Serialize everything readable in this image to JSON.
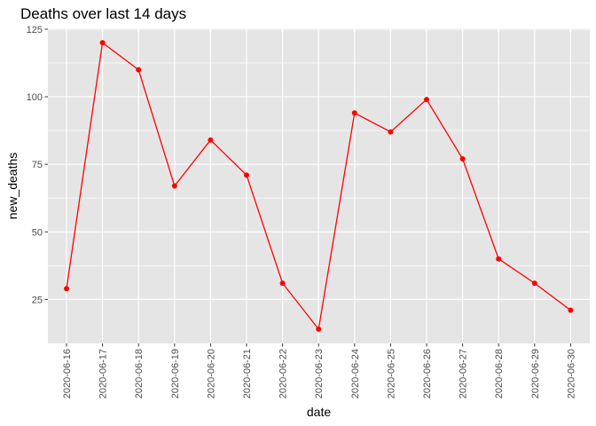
{
  "chart_data": {
    "type": "line",
    "title": "Deaths over last 14 days",
    "xlabel": "date",
    "ylabel": "new_deaths",
    "x": [
      "2020-06-16",
      "2020-06-17",
      "2020-06-18",
      "2020-06-19",
      "2020-06-20",
      "2020-06-21",
      "2020-06-22",
      "2020-06-23",
      "2020-06-24",
      "2020-06-25",
      "2020-06-26",
      "2020-06-27",
      "2020-06-28",
      "2020-06-29",
      "2020-06-30"
    ],
    "series": [
      {
        "values": [
          29,
          120,
          110,
          67,
          84,
          71,
          31,
          14,
          94,
          87,
          99,
          77,
          40,
          31,
          21
        ],
        "color": "#ff0000"
      }
    ],
    "yticks": [
      25,
      50,
      75,
      100,
      125
    ],
    "ylim": [
      8.7,
      125.3
    ],
    "grid": true,
    "legend": "none",
    "panel_background": "#e5e5e5",
    "gridline_color": "#ffffff"
  }
}
